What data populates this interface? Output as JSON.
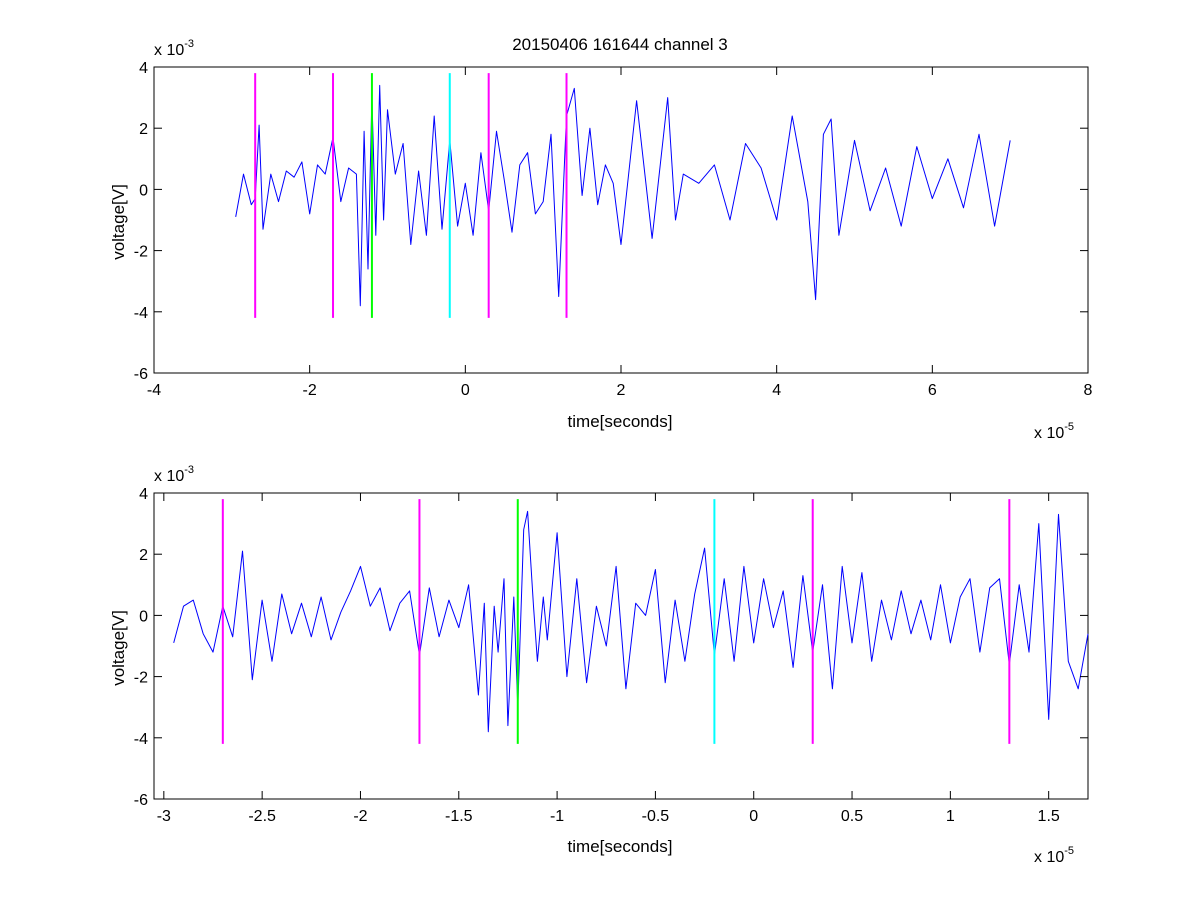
{
  "chart_data": [
    {
      "type": "line",
      "title": "20150406 161644 channel 3",
      "xlabel": "time[seconds]",
      "ylabel": "voltage[V]",
      "x_multiplier": {
        "base": "x 10",
        "exp": "-5"
      },
      "y_multiplier": {
        "base": "x 10",
        "exp": "-3"
      },
      "xlim": [
        -4,
        8
      ],
      "ylim": [
        -6,
        4
      ],
      "xticks": [
        -4,
        -2,
        0,
        2,
        4,
        6,
        8
      ],
      "yticks": [
        -6,
        -4,
        -2,
        0,
        2,
        4
      ],
      "xtick_labels": [
        "-4",
        "-2",
        "0",
        "2",
        "4",
        "6",
        "8"
      ],
      "ytick_labels": [
        "-6",
        "-4",
        "-2",
        "0",
        "2",
        "4"
      ],
      "grid": false,
      "series": [
        {
          "color": "#0000ff",
          "x": [
            -2.95,
            -2.85,
            -2.75,
            -2.7,
            -2.65,
            -2.6,
            -2.5,
            -2.4,
            -2.3,
            -2.2,
            -2.1,
            -2.0,
            -1.9,
            -1.8,
            -1.7,
            -1.6,
            -1.5,
            -1.4,
            -1.35,
            -1.3,
            -1.25,
            -1.2,
            -1.15,
            -1.1,
            -1.05,
            -1.0,
            -0.9,
            -0.8,
            -0.7,
            -0.6,
            -0.5,
            -0.4,
            -0.3,
            -0.2,
            -0.1,
            0.0,
            0.1,
            0.2,
            0.3,
            0.4,
            0.5,
            0.6,
            0.7,
            0.8,
            0.9,
            1.0,
            1.1,
            1.2,
            1.3,
            1.4,
            1.5,
            1.6,
            1.7,
            1.8,
            1.9,
            2.0,
            2.2,
            2.4,
            2.6,
            2.7,
            2.8,
            3.0,
            3.2,
            3.4,
            3.6,
            3.8,
            4.0,
            4.2,
            4.4,
            4.5,
            4.6,
            4.7,
            4.8,
            5.0,
            5.2,
            5.4,
            5.6,
            5.8,
            6.0,
            6.2,
            6.4,
            6.6,
            6.8,
            7.0
          ],
          "y": [
            -0.9,
            0.5,
            -0.5,
            -0.3,
            2.1,
            -1.3,
            0.5,
            -0.4,
            0.6,
            0.4,
            0.9,
            -0.8,
            0.8,
            0.5,
            1.7,
            -0.4,
            0.7,
            0.5,
            -3.8,
            1.9,
            -2.6,
            3.0,
            -1.5,
            3.4,
            -1.0,
            2.6,
            0.5,
            1.5,
            -1.8,
            0.6,
            -1.5,
            2.4,
            -1.3,
            1.6,
            -1.2,
            0.2,
            -1.5,
            1.2,
            -0.7,
            1.9,
            0.3,
            -1.4,
            0.8,
            1.2,
            -0.8,
            -0.4,
            1.8,
            -3.5,
            2.4,
            3.3,
            -0.2,
            2.0,
            -0.5,
            0.8,
            0.2,
            -1.8,
            2.9,
            -1.6,
            3.0,
            -1.0,
            0.5,
            0.2,
            0.8,
            -1.0,
            1.5,
            0.7,
            -1.0,
            2.4,
            -0.4,
            -3.6,
            1.8,
            2.3,
            -1.5,
            1.6,
            -0.7,
            0.7,
            -1.2,
            1.4,
            -0.3,
            1.0,
            -0.6,
            1.8,
            -1.2,
            1.6
          ]
        }
      ],
      "markers": [
        {
          "x": -2.7,
          "color": "#ff00ff"
        },
        {
          "x": -1.7,
          "color": "#ff00ff"
        },
        {
          "x": -1.2,
          "color": "#00ff00"
        },
        {
          "x": -0.2,
          "color": "#00ffff"
        },
        {
          "x": 0.3,
          "color": "#ff00ff"
        },
        {
          "x": 1.3,
          "color": "#ff00ff"
        }
      ],
      "marker_yrange": [
        -4.2,
        3.8
      ]
    },
    {
      "type": "line",
      "xlabel": "time[seconds]",
      "ylabel": "voltage[V]",
      "x_multiplier": {
        "base": "x 10",
        "exp": "-5"
      },
      "y_multiplier": {
        "base": "x 10",
        "exp": "-3"
      },
      "xlim": [
        -3.05,
        1.7
      ],
      "ylim": [
        -6,
        4
      ],
      "xticks": [
        -3,
        -2.5,
        -2,
        -1.5,
        -1,
        -0.5,
        0,
        0.5,
        1,
        1.5
      ],
      "yticks": [
        -6,
        -4,
        -2,
        0,
        2,
        4
      ],
      "xtick_labels": [
        "-3",
        "-2.5",
        "-2",
        "-1.5",
        "-1",
        "-0.5",
        "0",
        "0.5",
        "1",
        "1.5"
      ],
      "ytick_labels": [
        "-6",
        "-4",
        "-2",
        "0",
        "2",
        "4"
      ],
      "grid": false,
      "series": [
        {
          "color": "#0000ff",
          "x": [
            -2.95,
            -2.9,
            -2.85,
            -2.8,
            -2.75,
            -2.7,
            -2.65,
            -2.6,
            -2.55,
            -2.5,
            -2.45,
            -2.4,
            -2.35,
            -2.3,
            -2.25,
            -2.2,
            -2.15,
            -2.1,
            -2.05,
            -2.0,
            -1.95,
            -1.9,
            -1.85,
            -1.8,
            -1.75,
            -1.7,
            -1.65,
            -1.6,
            -1.55,
            -1.5,
            -1.45,
            -1.4,
            -1.37,
            -1.35,
            -1.32,
            -1.3,
            -1.27,
            -1.25,
            -1.22,
            -1.2,
            -1.17,
            -1.15,
            -1.12,
            -1.1,
            -1.07,
            -1.05,
            -1.0,
            -0.95,
            -0.9,
            -0.85,
            -0.8,
            -0.75,
            -0.7,
            -0.65,
            -0.6,
            -0.55,
            -0.5,
            -0.45,
            -0.4,
            -0.35,
            -0.3,
            -0.25,
            -0.2,
            -0.15,
            -0.1,
            -0.05,
            0.0,
            0.05,
            0.1,
            0.15,
            0.2,
            0.25,
            0.3,
            0.35,
            0.4,
            0.45,
            0.5,
            0.55,
            0.6,
            0.65,
            0.7,
            0.75,
            0.8,
            0.85,
            0.9,
            0.95,
            1.0,
            1.05,
            1.1,
            1.15,
            1.2,
            1.25,
            1.3,
            1.35,
            1.4,
            1.45,
            1.5,
            1.55,
            1.6,
            1.65,
            1.7
          ],
          "y": [
            -0.9,
            0.3,
            0.5,
            -0.6,
            -1.2,
            0.3,
            -0.7,
            2.1,
            -2.1,
            0.5,
            -1.5,
            0.7,
            -0.6,
            0.4,
            -0.7,
            0.6,
            -0.8,
            0.1,
            0.8,
            1.6,
            0.3,
            0.9,
            -0.5,
            0.4,
            0.8,
            -1.3,
            0.9,
            -0.7,
            0.5,
            -0.4,
            1.0,
            -2.6,
            0.4,
            -3.8,
            0.3,
            -1.2,
            1.2,
            -3.6,
            0.6,
            -3.0,
            2.8,
            3.4,
            0.3,
            -1.5,
            0.6,
            -0.8,
            2.7,
            -2.0,
            1.2,
            -2.2,
            0.3,
            -1.0,
            1.6,
            -2.4,
            0.4,
            0.0,
            1.5,
            -2.2,
            0.5,
            -1.5,
            0.7,
            2.2,
            -1.3,
            1.2,
            -1.5,
            1.6,
            -0.9,
            1.2,
            -0.4,
            0.8,
            -1.7,
            1.3,
            -1.2,
            1.0,
            -2.4,
            1.6,
            -0.9,
            1.4,
            -1.5,
            0.5,
            -0.8,
            0.8,
            -0.6,
            0.5,
            -0.8,
            1.0,
            -0.9,
            0.6,
            1.2,
            -1.2,
            0.9,
            1.2,
            -1.6,
            1.0,
            -1.2,
            3.0,
            -3.4,
            3.3,
            -1.5,
            -2.4,
            -0.6
          ]
        }
      ],
      "markers": [
        {
          "x": -2.7,
          "color": "#ff00ff"
        },
        {
          "x": -1.7,
          "color": "#ff00ff"
        },
        {
          "x": -1.2,
          "color": "#00ff00"
        },
        {
          "x": -0.2,
          "color": "#00ffff"
        },
        {
          "x": 0.3,
          "color": "#ff00ff"
        },
        {
          "x": 1.3,
          "color": "#ff00ff"
        }
      ],
      "marker_yrange": [
        -4.2,
        3.8
      ]
    }
  ]
}
